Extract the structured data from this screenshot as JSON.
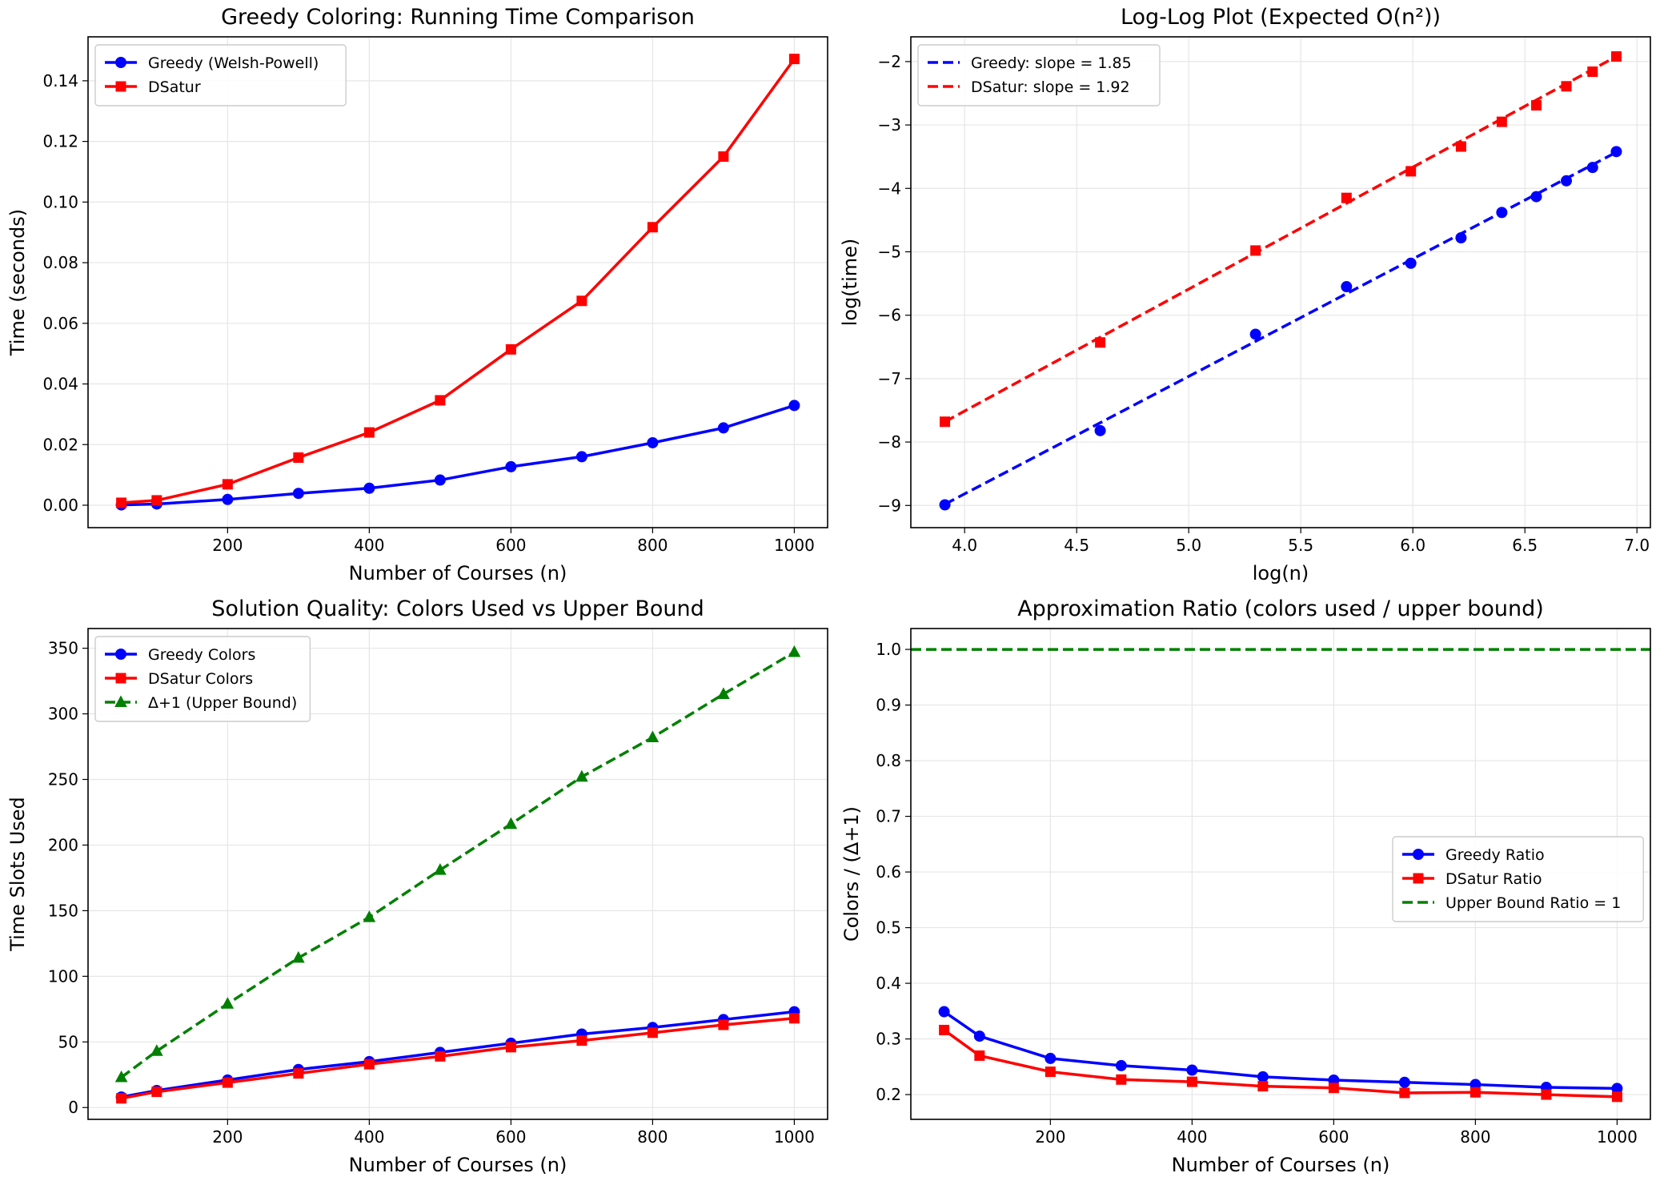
{
  "colors": {
    "blue": "#0000ff",
    "red": "#ff0000",
    "green": "#008000",
    "grid": "#e6e6e6"
  },
  "chart_data": [
    {
      "id": "runtime",
      "type": "line",
      "title": "Greedy Coloring: Running Time Comparison",
      "xlabel": "Number of Courses (n)",
      "ylabel": "Time (seconds)",
      "xlim": [
        3,
        1047
      ],
      "ylim": [
        -0.0074,
        0.1545
      ],
      "xticks": [
        200,
        400,
        600,
        800,
        1000
      ],
      "xtick_labels": [
        "200",
        "400",
        "600",
        "800",
        "1000"
      ],
      "yticks": [
        0,
        0.02,
        0.04,
        0.06,
        0.08,
        0.1,
        0.12,
        0.14
      ],
      "ytick_labels": [
        "0.00",
        "0.02",
        "0.04",
        "0.06",
        "0.08",
        "0.10",
        "0.12",
        "0.14"
      ],
      "legend": "top-left",
      "series": [
        {
          "name": "Greedy (Welsh-Powell)",
          "color": "blue",
          "marker": "circle",
          "dash": false,
          "x": [
            50,
            100,
            200,
            300,
            400,
            500,
            600,
            700,
            800,
            900,
            1000
          ],
          "y": [
            0.0001,
            0.0004,
            0.0019,
            0.0039,
            0.0056,
            0.0083,
            0.0127,
            0.016,
            0.0206,
            0.0255,
            0.0329
          ]
        },
        {
          "name": "DSatur",
          "color": "red",
          "marker": "square",
          "dash": false,
          "x": [
            50,
            100,
            200,
            300,
            400,
            500,
            600,
            700,
            800,
            900,
            1000
          ],
          "y": [
            0.0008,
            0.0016,
            0.0069,
            0.0157,
            0.024,
            0.0346,
            0.0514,
            0.0674,
            0.0917,
            0.115,
            0.1472
          ]
        }
      ]
    },
    {
      "id": "loglog",
      "type": "scatter",
      "title": "Log-Log Plot (Expected O(n²))",
      "xlabel": "log(n)",
      "ylabel": "log(time)",
      "xlim": [
        3.76,
        7.06
      ],
      "ylim": [
        -9.35,
        -1.61
      ],
      "xticks": [
        4.0,
        4.5,
        5.0,
        5.5,
        6.0,
        6.5,
        7.0
      ],
      "xtick_labels": [
        "4.0",
        "4.5",
        "5.0",
        "5.5",
        "6.0",
        "6.5",
        "7.0"
      ],
      "yticks": [
        -9,
        -8,
        -7,
        -6,
        -5,
        -4,
        -3,
        -2
      ],
      "ytick_labels": [
        "−9",
        "−8",
        "−7",
        "−6",
        "−5",
        "−4",
        "−3",
        "−2"
      ],
      "legend": "top-left",
      "series": [
        {
          "name": "Greedy: slope = 1.85",
          "color": "blue",
          "marker": "circle",
          "dash": true,
          "x": [
            3.912,
            4.605,
            5.298,
            5.704,
            5.991,
            6.215,
            6.397,
            6.551,
            6.685,
            6.802,
            6.908
          ],
          "y": [
            -8.99,
            -7.82,
            -6.3,
            -5.55,
            -5.18,
            -4.78,
            -4.38,
            -4.13,
            -3.88,
            -3.67,
            -3.42
          ],
          "fit_x": [
            3.912,
            6.908
          ],
          "fit_y": [
            -8.98,
            -3.43
          ]
        },
        {
          "name": "DSatur: slope = 1.92",
          "color": "red",
          "marker": "square",
          "dash": true,
          "x": [
            3.912,
            4.605,
            5.298,
            5.704,
            5.991,
            6.215,
            6.397,
            6.551,
            6.685,
            6.802,
            6.908
          ],
          "y": [
            -7.68,
            -6.43,
            -4.98,
            -4.15,
            -3.73,
            -3.34,
            -2.95,
            -2.69,
            -2.39,
            -2.16,
            -1.92
          ],
          "fit_x": [
            3.912,
            6.908
          ],
          "fit_y": [
            -7.68,
            -1.92
          ]
        }
      ]
    },
    {
      "id": "quality",
      "type": "line",
      "title": "Solution Quality: Colors Used vs Upper Bound",
      "xlabel": "Number of Courses (n)",
      "ylabel": "Time Slots Used",
      "xlim": [
        3,
        1047
      ],
      "ylim": [
        -9,
        365
      ],
      "xticks": [
        200,
        400,
        600,
        800,
        1000
      ],
      "xtick_labels": [
        "200",
        "400",
        "600",
        "800",
        "1000"
      ],
      "yticks": [
        0,
        50,
        100,
        150,
        200,
        250,
        300,
        350
      ],
      "ytick_labels": [
        "0",
        "50",
        "100",
        "150",
        "200",
        "250",
        "300",
        "350"
      ],
      "legend": "top-left",
      "series": [
        {
          "name": "Greedy Colors",
          "color": "blue",
          "marker": "circle",
          "dash": false,
          "x": [
            50,
            100,
            200,
            300,
            400,
            500,
            600,
            700,
            800,
            900,
            1000
          ],
          "y": [
            8,
            13,
            21,
            29,
            35,
            42,
            49,
            56,
            61,
            67,
            73
          ]
        },
        {
          "name": "DSatur Colors",
          "color": "red",
          "marker": "square",
          "dash": false,
          "x": [
            50,
            100,
            200,
            300,
            400,
            500,
            600,
            700,
            800,
            900,
            1000
          ],
          "y": [
            7,
            12,
            19,
            26,
            33,
            39,
            46,
            51,
            57,
            63,
            68
          ]
        },
        {
          "name": "Δ+1 (Upper Bound)",
          "color": "green",
          "marker": "triangle",
          "dash": true,
          "x": [
            50,
            100,
            200,
            300,
            400,
            500,
            600,
            700,
            800,
            900,
            1000
          ],
          "y": [
            23,
            43,
            79,
            114,
            145,
            181,
            216,
            252,
            282,
            315,
            347
          ]
        }
      ]
    },
    {
      "id": "ratio",
      "type": "line",
      "title": "Approximation Ratio (colors used / upper bound)",
      "xlabel": "Number of Courses (n)",
      "ylabel": "Colors / (Δ+1)",
      "xlim": [
        3,
        1047
      ],
      "ylim": [
        0.1555,
        1.0375
      ],
      "xticks": [
        200,
        400,
        600,
        800,
        1000
      ],
      "xtick_labels": [
        "200",
        "400",
        "600",
        "800",
        "1000"
      ],
      "yticks": [
        0.2,
        0.3,
        0.4,
        0.5,
        0.6,
        0.7,
        0.8,
        0.9,
        1.0
      ],
      "ytick_labels": [
        "0.2",
        "0.3",
        "0.4",
        "0.5",
        "0.6",
        "0.7",
        "0.8",
        "0.9",
        "1.0"
      ],
      "legend": "center-right",
      "series": [
        {
          "name": "Greedy Ratio",
          "color": "blue",
          "marker": "circle",
          "dash": false,
          "x": [
            50,
            100,
            200,
            300,
            400,
            500,
            600,
            700,
            800,
            900,
            1000
          ],
          "y": [
            0.349,
            0.305,
            0.265,
            0.252,
            0.244,
            0.232,
            0.226,
            0.222,
            0.218,
            0.213,
            0.211
          ]
        },
        {
          "name": "DSatur Ratio",
          "color": "red",
          "marker": "square",
          "dash": false,
          "x": [
            50,
            100,
            200,
            300,
            400,
            500,
            600,
            700,
            800,
            900,
            1000
          ],
          "y": [
            0.316,
            0.27,
            0.241,
            0.227,
            0.223,
            0.215,
            0.212,
            0.203,
            0.204,
            0.2,
            0.196
          ]
        },
        {
          "name": "Upper Bound Ratio = 1",
          "color": "green",
          "marker": "none",
          "dash": true,
          "hline": 1.0
        }
      ]
    }
  ]
}
